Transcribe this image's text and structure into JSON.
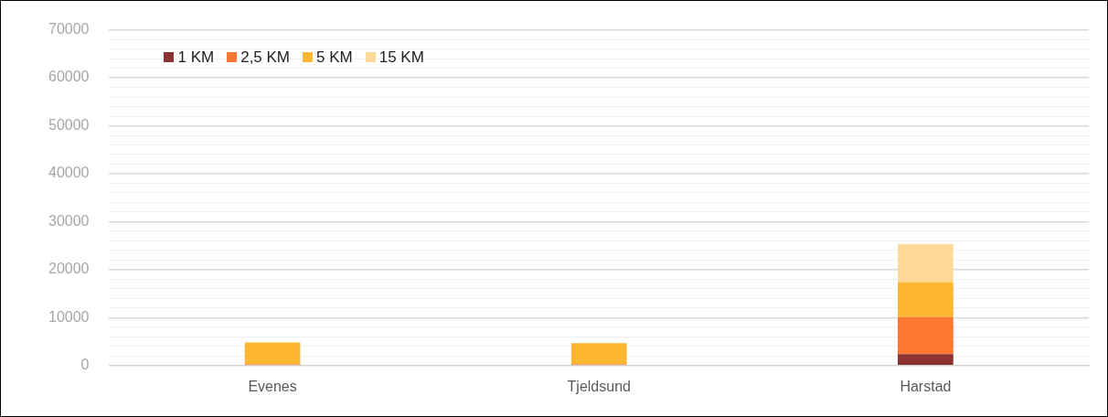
{
  "chart_data": {
    "type": "bar",
    "stacked": true,
    "categories": [
      "Evenes",
      "Tjeldsund",
      "Harstad"
    ],
    "series": [
      {
        "name": "1 KM",
        "color": "#8b3232",
        "values": [
          0,
          0,
          2400
        ]
      },
      {
        "name": "2,5 KM",
        "color": "#fe7733",
        "values": [
          300,
          300,
          7700
        ]
      },
      {
        "name": "5 KM",
        "color": "#feb733",
        "values": [
          4500,
          4400,
          7300
        ]
      },
      {
        "name": "15 KM",
        "color": "#fed998",
        "values": [
          0,
          0,
          7900
        ]
      }
    ],
    "ylim": [
      0,
      70000
    ],
    "yticks": [
      0,
      {
        "value": 2000,
        "label": null
      },
      {
        "value": 4000,
        "label": null
      },
      {
        "value": 6000,
        "label": null
      },
      {
        "value": 8000,
        "label": null
      },
      10000,
      {
        "value": 12000,
        "label": null
      },
      {
        "value": 14000,
        "label": null
      },
      {
        "value": 16000,
        "label": null
      },
      {
        "value": 18000,
        "label": null
      },
      20000,
      {
        "value": 22000,
        "label": null
      },
      {
        "value": 24000,
        "label": null
      },
      {
        "value": 26000,
        "label": null
      },
      {
        "value": 28000,
        "label": null
      },
      30000,
      {
        "value": 32000,
        "label": null
      },
      {
        "value": 34000,
        "label": null
      },
      {
        "value": 36000,
        "label": null
      },
      {
        "value": 38000,
        "label": null
      },
      40000,
      {
        "value": 42000,
        "label": null
      },
      {
        "value": 44000,
        "label": null
      },
      {
        "value": 46000,
        "label": null
      },
      {
        "value": 48000,
        "label": null
      },
      50000,
      {
        "value": 52000,
        "label": null
      },
      {
        "value": 54000,
        "label": null
      },
      {
        "value": 56000,
        "label": null
      },
      {
        "value": 58000,
        "label": null
      },
      60000,
      {
        "value": 62000,
        "label": null
      },
      {
        "value": 64000,
        "label": null
      },
      {
        "value": 66000,
        "label": null
      },
      {
        "value": 68000,
        "label": null
      },
      70000
    ],
    "grid": "y",
    "legend": "top left"
  }
}
